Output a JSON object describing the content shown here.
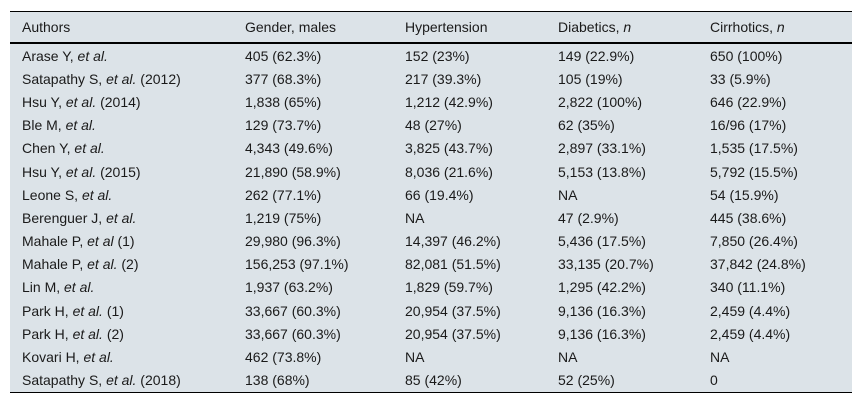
{
  "colors": {
    "page_bg": "#ffffff",
    "table_bg": "#dce3e8",
    "text": "#1a1a1a",
    "rule": "#000000"
  },
  "table": {
    "columns": [
      {
        "text": "Authors",
        "italic": ""
      },
      {
        "text": "Gender, males",
        "italic": ""
      },
      {
        "text": "Hypertension",
        "italic": ""
      },
      {
        "text": "Diabetics, ",
        "italic": "n"
      },
      {
        "text": "Cirrhotics, ",
        "italic": "n"
      }
    ],
    "rows": [
      {
        "author": {
          "pre": "Arase Y, ",
          "it": "et al.",
          "post": ""
        },
        "gender": "405 (62.3%)",
        "hypertension": "152 (23%)",
        "diabetics": "149 (22.9%)",
        "cirrhotics": "650 (100%)"
      },
      {
        "author": {
          "pre": "Satapathy S, ",
          "it": "et al.",
          "post": " (2012)"
        },
        "gender": "377 (68.3%)",
        "hypertension": "217 (39.3%)",
        "diabetics": "105 (19%)",
        "cirrhotics": "33 (5.9%)"
      },
      {
        "author": {
          "pre": "Hsu Y, ",
          "it": "et al.",
          "post": " (2014)"
        },
        "gender": "1,838 (65%)",
        "hypertension": "1,212 (42.9%)",
        "diabetics": "2,822 (100%)",
        "cirrhotics": "646 (22.9%)"
      },
      {
        "author": {
          "pre": "Ble M, ",
          "it": "et al.",
          "post": ""
        },
        "gender": "129 (73.7%)",
        "hypertension": "48 (27%)",
        "diabetics": "62 (35%)",
        "cirrhotics": "16/96 (17%)"
      },
      {
        "author": {
          "pre": "Chen Y, ",
          "it": "et al.",
          "post": ""
        },
        "gender": "4,343 (49.6%)",
        "hypertension": "3,825 (43.7%)",
        "diabetics": "2,897 (33.1%)",
        "cirrhotics": "1,535 (17.5%)"
      },
      {
        "author": {
          "pre": "Hsu Y, ",
          "it": "et al.",
          "post": " (2015)"
        },
        "gender": "21,890 (58.9%)",
        "hypertension": "8,036 (21.6%)",
        "diabetics": "5,153 (13.8%)",
        "cirrhotics": "5,792 (15.5%)"
      },
      {
        "author": {
          "pre": "Leone S, ",
          "it": "et al.",
          "post": ""
        },
        "gender": "262 (77.1%)",
        "hypertension": "66 (19.4%)",
        "diabetics": "NA",
        "cirrhotics": "54 (15.9%)"
      },
      {
        "author": {
          "pre": "Berenguer J, ",
          "it": "et al.",
          "post": ""
        },
        "gender": "1,219 (75%)",
        "hypertension": "NA",
        "diabetics": "47 (2.9%)",
        "cirrhotics": "445 (38.6%)"
      },
      {
        "author": {
          "pre": "Mahale P, ",
          "it": "et al",
          "post": " (1)"
        },
        "gender": "29,980 (96.3%)",
        "hypertension": "14,397 (46.2%)",
        "diabetics": "5,436 (17.5%)",
        "cirrhotics": "7,850 (26.4%)"
      },
      {
        "author": {
          "pre": "Mahale P, ",
          "it": "et al.",
          "post": " (2)"
        },
        "gender": "156,253 (97.1%)",
        "hypertension": "82,081 (51.5%)",
        "diabetics": "33,135 (20.7%)",
        "cirrhotics": "37,842 (24.8%)"
      },
      {
        "author": {
          "pre": "Lin M, ",
          "it": "et al.",
          "post": ""
        },
        "gender": "1,937 (63.2%)",
        "hypertension": "1,829 (59.7%)",
        "diabetics": "1,295 (42.2%)",
        "cirrhotics": "340 (11.1%)"
      },
      {
        "author": {
          "pre": "Park H, ",
          "it": "et al.",
          "post": " (1)"
        },
        "gender": "33,667 (60.3%)",
        "hypertension": "20,954 (37.5%)",
        "diabetics": "9,136 (16.3%)",
        "cirrhotics": "2,459 (4.4%)"
      },
      {
        "author": {
          "pre": "Park H, ",
          "it": "et al.",
          "post": " (2)"
        },
        "gender": "33,667 (60.3%)",
        "hypertension": "20,954 (37.5%)",
        "diabetics": "9,136 (16.3%)",
        "cirrhotics": "2,459 (4.4%)"
      },
      {
        "author": {
          "pre": "Kovari H, ",
          "it": "et al.",
          "post": ""
        },
        "gender": "462 (73.8%)",
        "hypertension": "NA",
        "diabetics": "NA",
        "cirrhotics": "NA"
      },
      {
        "author": {
          "pre": "Satapathy S, ",
          "it": "et al.",
          "post": " (2018)"
        },
        "gender": "138 (68%)",
        "hypertension": "85 (42%)",
        "diabetics": "52 (25%)",
        "cirrhotics": "0"
      }
    ]
  }
}
